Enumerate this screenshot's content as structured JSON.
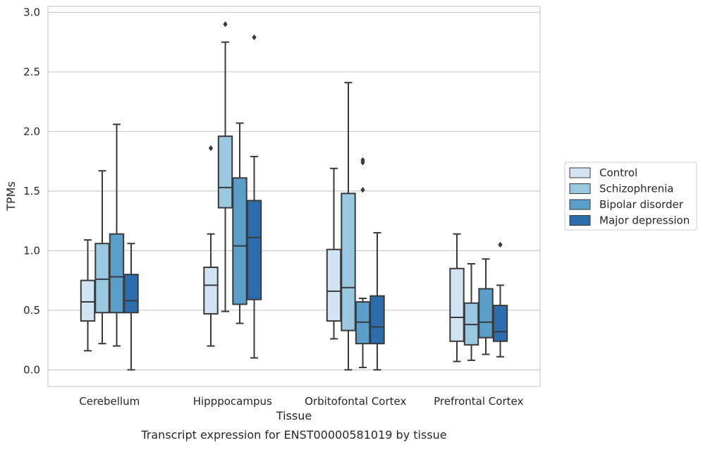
{
  "chart_data": {
    "type": "box",
    "xlabel": "Tissue",
    "ylabel": "TPMs",
    "caption": "Transcript expression for ENST00000581019 by tissue",
    "ylim": [
      -0.14,
      3.05
    ],
    "yticks": [
      "0.0",
      "0.5",
      "1.0",
      "1.5",
      "2.0",
      "2.5",
      "3.0"
    ],
    "grid": "horizontal",
    "legend_placement": "right",
    "categories": [
      "Cerebellum",
      "Hipppocampus",
      "Orbitofontal Cortex",
      "Prefrontal Cortex"
    ],
    "series": [
      {
        "name": "Control",
        "color": "#d2e3f3",
        "boxes": [
          {
            "whislo": 0.16,
            "q1": 0.41,
            "med": 0.57,
            "q3": 0.75,
            "whishi": 1.09,
            "fliers": []
          },
          {
            "whislo": 0.2,
            "q1": 0.47,
            "med": 0.71,
            "q3": 0.86,
            "whishi": 1.14,
            "fliers": [
              1.86
            ]
          },
          {
            "whislo": 0.26,
            "q1": 0.41,
            "med": 0.66,
            "q3": 1.01,
            "whishi": 1.69,
            "fliers": []
          },
          {
            "whislo": 0.07,
            "q1": 0.24,
            "med": 0.44,
            "q3": 0.85,
            "whishi": 1.14,
            "fliers": []
          }
        ]
      },
      {
        "name": "Schizophrenia",
        "color": "#9ac8e0",
        "boxes": [
          {
            "whislo": 0.22,
            "q1": 0.48,
            "med": 0.76,
            "q3": 1.06,
            "whishi": 1.67,
            "fliers": []
          },
          {
            "whislo": 0.49,
            "q1": 1.36,
            "med": 1.53,
            "q3": 1.96,
            "whishi": 2.75,
            "fliers": [
              2.9
            ]
          },
          {
            "whislo": 0.0,
            "q1": 0.33,
            "med": 0.69,
            "q3": 1.48,
            "whishi": 2.41,
            "fliers": []
          },
          {
            "whislo": 0.08,
            "q1": 0.21,
            "med": 0.38,
            "q3": 0.56,
            "whishi": 0.89,
            "fliers": []
          }
        ]
      },
      {
        "name": "Bipolar disorder",
        "color": "#5a9ec9",
        "boxes": [
          {
            "whislo": 0.2,
            "q1": 0.48,
            "med": 0.78,
            "q3": 1.14,
            "whishi": 2.06,
            "fliers": []
          },
          {
            "whislo": 0.39,
            "q1": 0.55,
            "med": 1.04,
            "q3": 1.61,
            "whishi": 2.07,
            "fliers": []
          },
          {
            "whislo": 0.02,
            "q1": 0.22,
            "med": 0.4,
            "q3": 0.57,
            "whishi": 0.6,
            "fliers": [
              1.51,
              1.74,
              1.76
            ]
          },
          {
            "whislo": 0.13,
            "q1": 0.27,
            "med": 0.4,
            "q3": 0.68,
            "whishi": 0.93,
            "fliers": []
          }
        ]
      },
      {
        "name": "Major depression",
        "color": "#2d6dad",
        "boxes": [
          {
            "whislo": 0.0,
            "q1": 0.48,
            "med": 0.58,
            "q3": 0.8,
            "whishi": 1.06,
            "fliers": []
          },
          {
            "whislo": 0.1,
            "q1": 0.59,
            "med": 1.11,
            "q3": 1.42,
            "whishi": 1.79,
            "fliers": [
              2.79
            ]
          },
          {
            "whislo": 0.0,
            "q1": 0.22,
            "med": 0.36,
            "q3": 0.62,
            "whishi": 1.15,
            "fliers": []
          },
          {
            "whislo": 0.11,
            "q1": 0.24,
            "med": 0.32,
            "q3": 0.54,
            "whishi": 0.71,
            "fliers": [
              1.05
            ]
          }
        ]
      }
    ]
  }
}
